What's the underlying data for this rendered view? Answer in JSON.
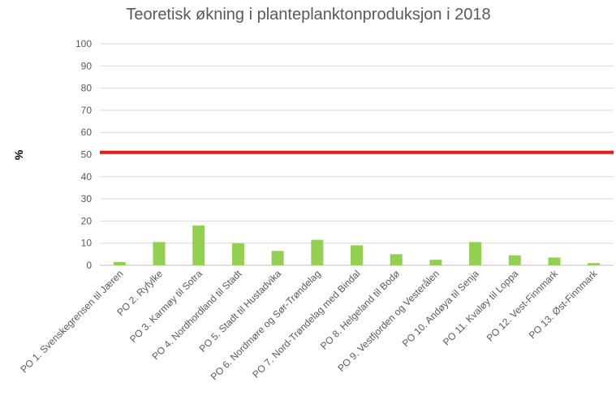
{
  "chart_data": {
    "type": "bar",
    "title": "Teoretisk økning i planteplanktonproduksjon i 2018",
    "xlabel": "",
    "ylabel": "%",
    "ylim": [
      0,
      100
    ],
    "ytick_step": 10,
    "yticks": [
      "0",
      "10",
      "20",
      "30",
      "40",
      "50",
      "60",
      "70",
      "80",
      "90",
      "100"
    ],
    "grid": true,
    "categories": [
      "PO 1. Svenskegrensen til Jæren",
      "PO 2. Ryfylke",
      "PO 3. Karmøy til Sotra",
      "PO 4. Nordhordland til Stadt",
      "PO 5. Stadt til Hustadvika",
      "PO 6. Nordmøre og Sør-Trøndelag",
      "PO 7. Nord-Trøndelag med Bindal",
      "PO 8. Helgeland til Bodø",
      "PO 9. Vestfjorden og Vesterålen",
      "PO 10. Andøya til Senja",
      "PO 11. Kvaløy til Loppa",
      "PO 12. Vest-Finnmark",
      "PO 13. Øst-Finnmark"
    ],
    "values": [
      1.5,
      10.5,
      18,
      10,
      6.5,
      11.5,
      9,
      5,
      2.5,
      10.5,
      4.5,
      3.5,
      1
    ],
    "bar_color": "#92d050",
    "reference_line": {
      "value": 51,
      "color": "#e31a1c"
    },
    "gridline_color": "#d9d9d9",
    "text_color": "#595959"
  }
}
